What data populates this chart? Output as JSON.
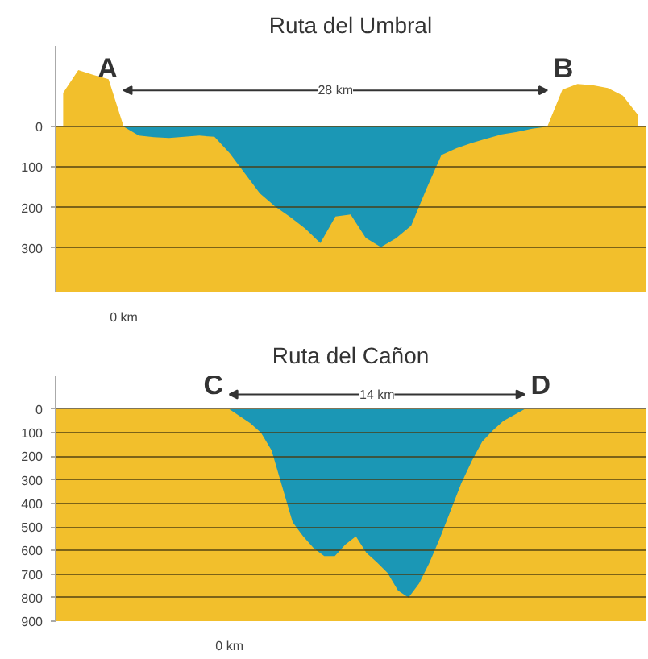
{
  "chart_data": [
    {
      "type": "area",
      "title": "Ruta del Umbral",
      "ylim": [
        410,
        -200
      ],
      "yticks": [
        0,
        100,
        200,
        300
      ],
      "grid": "y",
      "categories": [
        null,
        null,
        null,
        null,
        "0 km",
        null,
        null,
        null,
        null,
        null,
        null,
        null,
        null,
        null,
        null,
        null,
        null,
        null,
        null,
        null,
        null,
        null,
        null,
        null,
        null,
        null,
        null,
        null,
        null,
        null,
        null,
        null,
        null,
        null,
        null,
        null,
        null,
        null,
        null
      ],
      "series": [
        {
          "color": "#1b97b5",
          "values": [
            0,
            0,
            0,
            0,
            0,
            22,
            26,
            28,
            25,
            22,
            25,
            65,
            115,
            165,
            197,
            223,
            252,
            288,
            222,
            217,
            275,
            298,
            276,
            245,
            155,
            70,
            53,
            40,
            29,
            19,
            13,
            5,
            0,
            0,
            0,
            0,
            0,
            0,
            0
          ]
        },
        {
          "color": "#f2bf2c",
          "values": [
            -84,
            -140,
            -128,
            -118,
            0,
            0,
            0,
            0,
            0,
            0,
            0,
            0,
            0,
            0,
            0,
            0,
            0,
            0,
            0,
            0,
            0,
            0,
            0,
            0,
            0,
            0,
            0,
            0,
            0,
            0,
            0,
            0,
            0,
            -92,
            -106,
            -103,
            -96,
            -77,
            -29
          ]
        }
      ],
      "bands": [
        {
          "axis": "y",
          "from": 0,
          "to": 410,
          "color": "#f2bf2c"
        }
      ],
      "annotations": [
        "A",
        "B",
        "28 km"
      ]
    },
    {
      "type": "area",
      "title": "Ruta del Cañon",
      "ylim": [
        900,
        -140
      ],
      "yticks": [
        0,
        100,
        200,
        300,
        400,
        500,
        600,
        700,
        800,
        900
      ],
      "grid": "y",
      "categories": [
        null,
        null,
        null,
        null,
        null,
        null,
        null,
        null,
        null,
        null,
        null,
        null,
        null,
        null,
        null,
        null,
        "0 km",
        null,
        null,
        null,
        null,
        null,
        null,
        null,
        null,
        null,
        null,
        null,
        null,
        null,
        null,
        null,
        null,
        null,
        null,
        null,
        null,
        null,
        null,
        null,
        null,
        null,
        null,
        null,
        null,
        null,
        null,
        null,
        null,
        null,
        null,
        null,
        null,
        null,
        null,
        null
      ],
      "series": [
        {
          "color": "#1b97b5",
          "values": [
            0,
            0,
            0,
            0,
            0,
            0,
            0,
            0,
            0,
            0,
            0,
            0,
            0,
            0,
            0,
            0,
            0,
            30,
            60,
            100,
            175,
            328,
            480,
            540,
            590,
            624,
            624,
            575,
            540,
            610,
            650,
            695,
            770,
            800,
            740,
            650,
            545,
            430,
            315,
            220,
            137,
            90,
            50,
            25,
            0,
            0,
            0,
            0,
            0,
            0,
            0,
            0,
            0,
            0,
            0,
            0
          ]
        }
      ],
      "bands": [
        {
          "axis": "y",
          "from": 0,
          "to": 900,
          "color": "#f2bf2c"
        }
      ],
      "annotations": [
        "C",
        "D",
        "14 km"
      ]
    }
  ]
}
